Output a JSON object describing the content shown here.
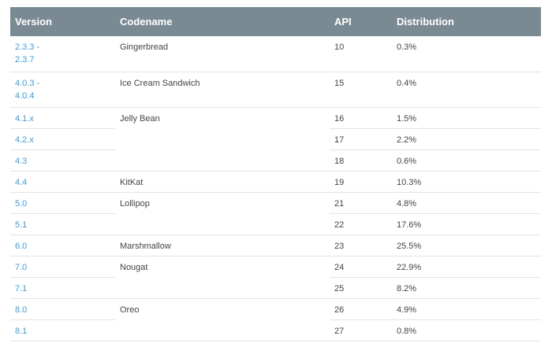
{
  "table": {
    "headers": {
      "version": "Version",
      "codename": "Codename",
      "api": "API",
      "distribution": "Distribution"
    },
    "rows": [
      {
        "version": "2.3.3 -\n2.3.7",
        "codename": "Gingerbread",
        "api": "10",
        "distribution": "0.3%"
      },
      {
        "version": "4.0.3 -\n4.0.4",
        "codename": "Ice Cream Sandwich",
        "api": "15",
        "distribution": "0.4%"
      },
      {
        "version": "4.1.x",
        "codename": "Jelly Bean",
        "api": "16",
        "distribution": "1.5%"
      },
      {
        "version": "4.2.x",
        "api": "17",
        "distribution": "2.2%"
      },
      {
        "version": "4.3",
        "api": "18",
        "distribution": "0.6%"
      },
      {
        "version": "4.4",
        "codename": "KitKat",
        "api": "19",
        "distribution": "10.3%"
      },
      {
        "version": "5.0",
        "codename": "Lollipop",
        "api": "21",
        "distribution": "4.8%"
      },
      {
        "version": "5.1",
        "api": "22",
        "distribution": "17.6%"
      },
      {
        "version": "6.0",
        "codename": "Marshmallow",
        "api": "23",
        "distribution": "25.5%"
      },
      {
        "version": "7.0",
        "codename": "Nougat",
        "api": "24",
        "distribution": "22.9%"
      },
      {
        "version": "7.1",
        "api": "25",
        "distribution": "8.2%"
      },
      {
        "version": "8.0",
        "codename": "Oreo",
        "api": "26",
        "distribution": "4.9%"
      },
      {
        "version": "8.1",
        "api": "27",
        "distribution": "0.8%"
      }
    ]
  }
}
